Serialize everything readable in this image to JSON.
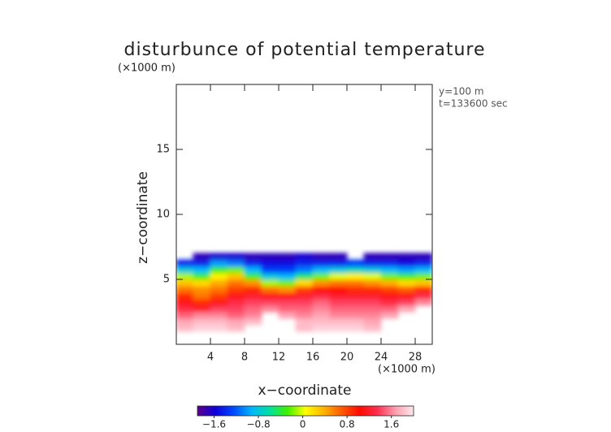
{
  "chart_data": {
    "type": "contour",
    "title": "disturbunce of potential temperature",
    "y_unit_label": "(×1000 m)",
    "x_unit_label": "(×1000 m)",
    "annotations": [
      "y=100 m",
      "t=133600 sec"
    ],
    "xlabel": "x−coordinate",
    "ylabel": "z−coordinate",
    "xlim": [
      0,
      30
    ],
    "ylim": [
      0,
      20
    ],
    "xticks": [
      4,
      8,
      12,
      16,
      20,
      24,
      28
    ],
    "yticks": [
      5,
      10,
      15
    ],
    "x_bins": [
      0,
      2,
      4,
      6,
      8,
      10,
      12,
      14,
      16,
      18,
      20,
      22,
      24,
      26,
      28,
      30
    ],
    "z_bins": [
      1,
      1.5,
      2,
      2.5,
      3,
      3.5,
      4,
      4.5,
      5,
      5.5,
      6,
      6.5,
      7
    ],
    "values": [
      [
        1.8,
        1.9,
        1.9,
        1.8,
        null,
        null,
        null,
        1.8,
        1.9,
        1.9,
        1.9,
        1.8,
        null,
        null,
        null
      ],
      [
        1.7,
        1.8,
        1.8,
        1.7,
        1.8,
        null,
        null,
        1.8,
        1.8,
        1.8,
        1.8,
        1.7,
        null,
        null,
        null
      ],
      [
        1.5,
        1.6,
        1.6,
        1.5,
        1.6,
        null,
        1.7,
        1.6,
        1.7,
        1.6,
        1.6,
        1.6,
        1.7,
        null,
        null
      ],
      [
        1.3,
        1.2,
        1.4,
        1.4,
        1.5,
        1.6,
        1.5,
        1.5,
        1.6,
        1.5,
        1.5,
        1.5,
        1.5,
        1.7,
        null
      ],
      [
        1.1,
        0.9,
        1.1,
        1.3,
        1.4,
        1.4,
        1.4,
        1.4,
        1.5,
        1.4,
        1.4,
        1.4,
        1.3,
        1.4,
        1.6
      ],
      [
        0.9,
        0.6,
        0.8,
        1.1,
        1.2,
        1.1,
        1.1,
        1.2,
        1.3,
        1.2,
        1.2,
        1.2,
        1.1,
        1.1,
        1.3
      ],
      [
        0.6,
        0.5,
        0.6,
        0.8,
        0.9,
        0.6,
        0.5,
        0.8,
        1.0,
        1.0,
        0.9,
        0.9,
        0.8,
        0.7,
        0.9
      ],
      [
        0.3,
        0.2,
        0.4,
        0.6,
        0.5,
        -0.1,
        -0.2,
        0.2,
        0.5,
        0.6,
        0.6,
        0.5,
        0.4,
        0.2,
        0.3
      ],
      [
        -0.1,
        -0.3,
        0.1,
        0.3,
        -0.3,
        -0.8,
        -0.9,
        -0.5,
        -0.2,
        0.0,
        0.1,
        0.0,
        -0.2,
        -0.3,
        -0.2
      ],
      [
        -0.8,
        -0.9,
        -0.3,
        -0.2,
        -0.9,
        -1.3,
        -1.3,
        -1.1,
        -0.9,
        -0.8,
        -0.7,
        -0.8,
        -0.9,
        -1.0,
        -0.9
      ],
      [
        -1.4,
        -1.4,
        -1.0,
        -1.1,
        -1.4,
        -1.5,
        -1.5,
        -1.4,
        -1.4,
        -1.4,
        -1.3,
        -1.4,
        -1.4,
        -1.5,
        -1.4
      ],
      [
        null,
        -1.7,
        -1.6,
        -1.6,
        -1.7,
        -1.7,
        -1.7,
        -1.6,
        -1.7,
        -1.7,
        null,
        -1.7,
        -1.7,
        -1.7,
        -1.7
      ]
    ],
    "clim": [
      -1.9,
      2.0
    ],
    "colormap": [
      "#5a008c",
      "#1000d8",
      "#0048ff",
      "#00b4ff",
      "#00e0a0",
      "#40f000",
      "#ffff00",
      "#ffb400",
      "#ff5a00",
      "#ff0a00",
      "#ff3050",
      "#ffa0b0",
      "#ffe8ee"
    ],
    "cticks": [
      {
        "value": -1.6,
        "label": "−1.6"
      },
      {
        "value": -0.8,
        "label": "−0.8"
      },
      0,
      0.8,
      1.6
    ]
  }
}
